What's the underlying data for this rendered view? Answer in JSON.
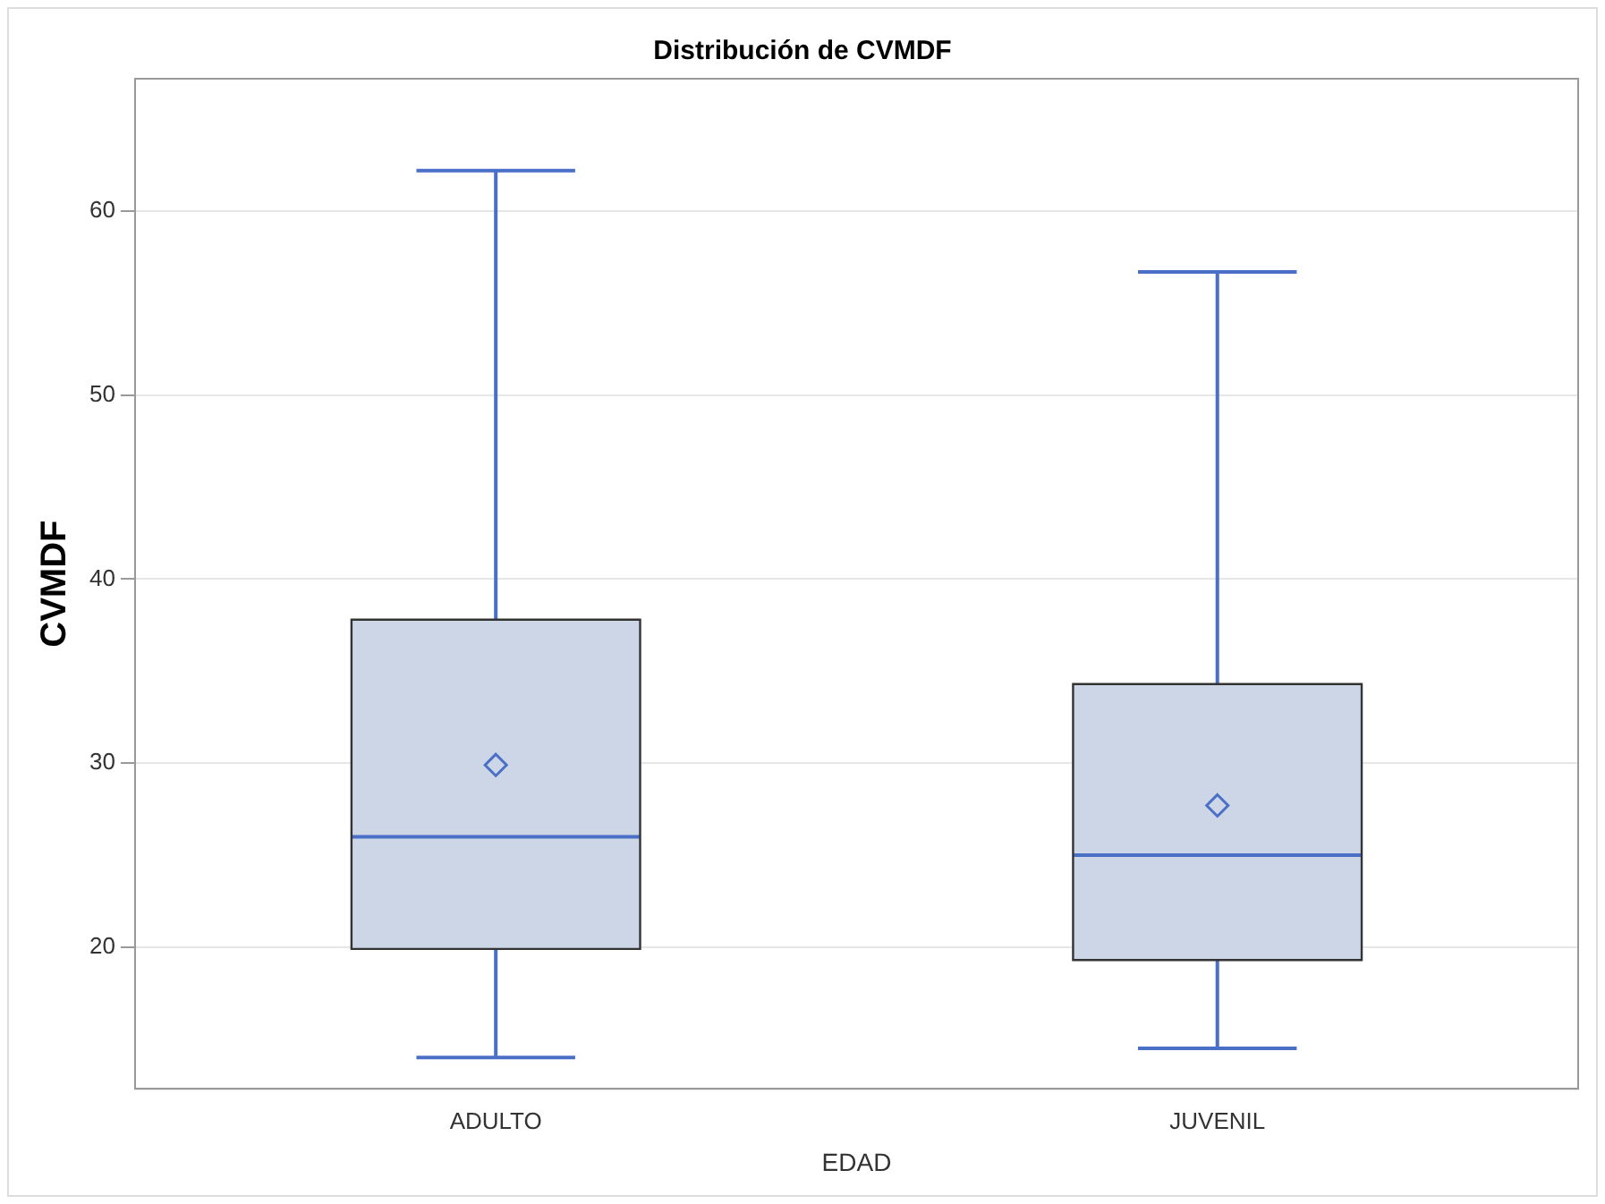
{
  "chart_data": {
    "type": "box",
    "title": "Distribución de CVMDF",
    "xlabel": "EDAD",
    "ylabel": "CVMDF",
    "categories": [
      "ADULTO",
      "JUVENIL"
    ],
    "boxes": [
      {
        "low": 14.0,
        "q1": 19.9,
        "median": 26.0,
        "q3": 37.8,
        "high": 62.2,
        "mean": 29.9
      },
      {
        "low": 14.5,
        "q1": 19.3,
        "median": 25.0,
        "q3": 34.3,
        "high": 56.7,
        "mean": 27.7
      }
    ],
    "color": "#cdd6e6",
    "ylim": [
      12.3,
      67.2
    ],
    "yticks": [
      20,
      30,
      40,
      50,
      60
    ],
    "grid": "y",
    "legend": false,
    "marker": "diamond"
  }
}
